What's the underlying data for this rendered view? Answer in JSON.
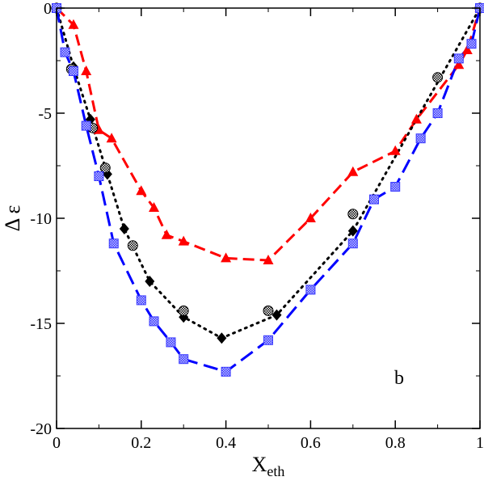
{
  "chart_data": {
    "type": "line",
    "xlabel_main": "X",
    "xlabel_sub": "eth",
    "ylabel": "Δ ε",
    "panel_label": "b",
    "xlim": [
      0,
      1
    ],
    "ylim": [
      -20,
      0
    ],
    "x_ticks": [
      0,
      0.2,
      0.4,
      0.6,
      0.8,
      1
    ],
    "x_tick_labels": [
      "0",
      "0.2",
      "0.4",
      "0.6",
      "0.8",
      "1"
    ],
    "y_ticks": [
      0,
      -5,
      -10,
      -15,
      -20
    ],
    "y_tick_labels": [
      "0",
      "-5",
      "-10",
      "-15",
      "-20"
    ],
    "grid": false,
    "series": [
      {
        "marker": "triangle",
        "color": "#ff0000",
        "line": "dashed",
        "x": [
          0,
          0.04,
          0.07,
          0.1,
          0.13,
          0.2,
          0.23,
          0.26,
          0.3,
          0.4,
          0.5,
          0.6,
          0.7,
          0.8,
          0.85,
          0.95,
          0.97,
          1.0
        ],
        "y": [
          0,
          -0.8,
          -3.0,
          -5.8,
          -6.2,
          -8.7,
          -9.5,
          -10.8,
          -11.1,
          -11.9,
          -12.0,
          -10.0,
          -7.8,
          -6.8,
          -5.3,
          -2.7,
          -2.0,
          0
        ]
      },
      {
        "marker": "diamond",
        "color": "#000000",
        "line": "dotted",
        "x": [
          0,
          0.04,
          0.08,
          0.12,
          0.16,
          0.22,
          0.3,
          0.39,
          0.52,
          0.7,
          1.0
        ],
        "y": [
          0,
          -2.8,
          -5.3,
          -7.9,
          -10.5,
          -13.0,
          -14.7,
          -15.7,
          -14.6,
          -10.6,
          0
        ]
      },
      {
        "marker": "patterned-circle",
        "color": "#000000",
        "line": "none",
        "x": [
          0,
          0.035,
          0.085,
          0.115,
          0.18,
          0.3,
          0.5,
          0.7,
          0.9,
          1.0
        ],
        "y": [
          0,
          -2.9,
          -5.7,
          -7.6,
          -11.3,
          -14.4,
          -14.4,
          -9.8,
          -3.3,
          0
        ]
      },
      {
        "marker": "patterned-square",
        "color": "#0000ff",
        "line": "long-dashed",
        "x": [
          0,
          0.02,
          0.04,
          0.07,
          0.1,
          0.135,
          0.2,
          0.23,
          0.27,
          0.3,
          0.4,
          0.5,
          0.6,
          0.7,
          0.75,
          0.8,
          0.86,
          0.9,
          0.95,
          0.98,
          1.0
        ],
        "y": [
          0,
          -2.1,
          -3.0,
          -5.6,
          -8.0,
          -11.2,
          -13.9,
          -14.9,
          -15.9,
          -16.7,
          -17.3,
          -15.8,
          -13.4,
          -11.2,
          -9.1,
          -8.5,
          -6.2,
          -5.0,
          -2.4,
          -1.7,
          0
        ]
      }
    ]
  }
}
